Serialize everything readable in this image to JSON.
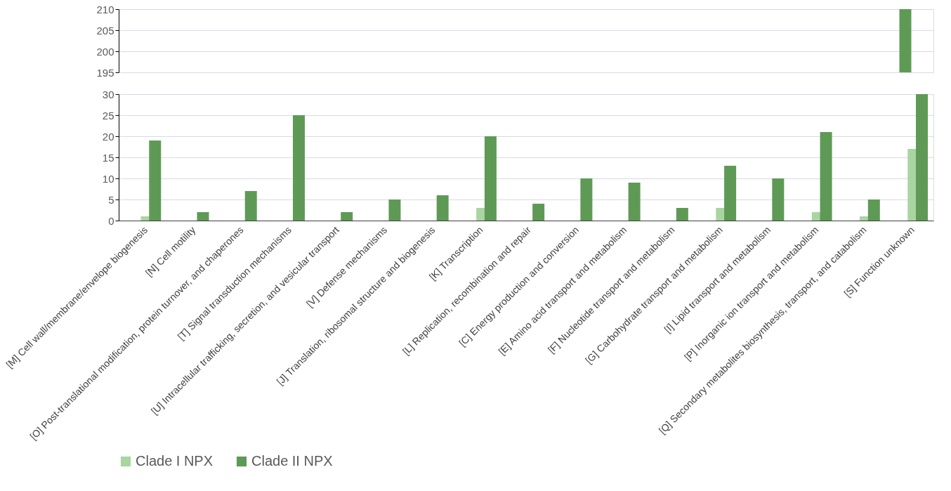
{
  "chart_data": [
    {
      "type": "bar",
      "categories": [
        null,
        null,
        null,
        null,
        null,
        null,
        null,
        null,
        null,
        null,
        null,
        null,
        null,
        null,
        null,
        null,
        null
      ],
      "series": [
        {
          "color": "#a9d5a1",
          "values": [
            null,
            null,
            null,
            null,
            null,
            null,
            null,
            null,
            null,
            null,
            null,
            null,
            null,
            null,
            null,
            null,
            null
          ]
        },
        {
          "color": "#5e9a55",
          "values": [
            null,
            null,
            null,
            null,
            null,
            null,
            null,
            null,
            null,
            null,
            null,
            null,
            null,
            null,
            null,
            null,
            210
          ]
        }
      ],
      "ylim": [
        195,
        210
      ],
      "yticks": [
        195,
        200,
        205,
        210
      ],
      "grid": "y",
      "tick_labels": "y"
    },
    {
      "type": "bar",
      "categories": [
        "[M] Cell wall/membrane/envelope biogenesis",
        "[N] Cell motility",
        "[O] Post-translational modification, protein turnover, and chaperones",
        "[T] Signal transduction mechanisms",
        "[U] Intracellular trafficking, secretion, and vesicular transport",
        "[V] Defense mechanisms",
        "[J] Translation, ribosomal structure and biogenesis",
        "[K] Transcription",
        "[L] Replication, recombination and repair",
        "[C] Energy production and conversion",
        "[E] Amino acid transport and metabolism",
        "[F] Nucleotide transport and metabolism",
        "[G] Carbohydrate transport and metabolism",
        "[I] Lipid transport and metabolism",
        "[P] Inorganic ion transport and metabolism",
        "[Q] Secondary metabolites biosynthesis, transport, and catabolism",
        "[S] Function unknown"
      ],
      "series": [
        {
          "name": "Clade I NPX",
          "color": "#a9d5a1",
          "values": [
            1,
            0,
            0,
            0,
            0,
            0,
            0,
            3,
            0,
            0,
            0,
            0,
            3,
            0,
            2,
            1,
            17
          ]
        },
        {
          "name": "Clade II NPX",
          "color": "#5e9a55",
          "values": [
            19,
            2,
            7,
            25,
            2,
            5,
            6,
            20,
            4,
            10,
            9,
            3,
            13,
            10,
            21,
            5,
            30
          ]
        }
      ],
      "ylim": [
        0,
        30
      ],
      "yticks": [
        0,
        5,
        10,
        15,
        20,
        25,
        30
      ],
      "grid": "y",
      "legend": "bottom"
    }
  ]
}
